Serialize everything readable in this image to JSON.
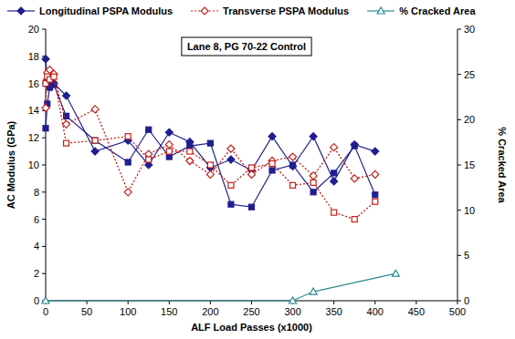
{
  "chart_data": {
    "type": "line",
    "annotation": "Lane 8, PG 70-22 Control",
    "x_label": "ALF Load Passes (x1000)",
    "y_label": "AC Modulus (GPa)",
    "y2_label": "% Cracked Area",
    "xlim": [
      0,
      500
    ],
    "xticks": [
      0,
      50,
      100,
      150,
      200,
      250,
      300,
      350,
      400,
      450,
      500
    ],
    "ylim": [
      0,
      20
    ],
    "yticks": [
      0,
      2,
      4,
      6,
      8,
      10,
      12,
      14,
      16,
      18,
      20
    ],
    "y2lim": [
      0,
      30
    ],
    "y2ticks": [
      0,
      5,
      10,
      15,
      20,
      25,
      30
    ],
    "grid": false,
    "legend": "top",
    "series": [
      {
        "name": "Longitudinal PSPA Modulus",
        "color": "#1f1f8f",
        "marker": "diamond",
        "line_style": "solid",
        "x": [
          0,
          2,
          5,
          10,
          25,
          60,
          100,
          125,
          150,
          175,
          200,
          225,
          250,
          275,
          300,
          325,
          350,
          375,
          400
        ],
        "values": [
          17.8,
          16.3,
          15.8,
          16.0,
          15.1,
          11.0,
          11.8,
          10.0,
          12.4,
          11.7,
          9.8,
          10.4,
          9.6,
          12.1,
          9.9,
          12.1,
          8.8,
          11.5,
          11.0
        ]
      },
      {
        "name": "Longitudinal PSPA Modulus",
        "color": "#1f1f8f",
        "marker": "square",
        "line_style": "solid",
        "x": [
          0,
          2,
          5,
          10,
          25,
          60,
          100,
          125,
          150,
          175,
          200,
          225,
          250,
          275,
          300,
          325,
          350,
          375,
          400
        ],
        "values": [
          12.7,
          14.5,
          15.7,
          15.9,
          13.6,
          11.8,
          10.2,
          12.6,
          10.6,
          11.4,
          11.6,
          7.1,
          6.9,
          9.6,
          10.0,
          8.0,
          9.4,
          11.4,
          7.8
        ]
      },
      {
        "name": "Transverse PSPA Modulus",
        "color": "#c0201a",
        "marker": "diamond-open",
        "line_style": "dotted",
        "x": [
          0,
          2,
          5,
          10,
          25,
          60,
          100,
          125,
          150,
          175,
          200,
          225,
          250,
          275,
          300,
          325,
          350,
          375,
          400
        ],
        "values": [
          14.2,
          16.8,
          17.0,
          16.7,
          13.0,
          14.1,
          8.0,
          10.8,
          11.5,
          10.3,
          9.3,
          11.2,
          9.3,
          10.3,
          10.6,
          9.2,
          11.3,
          9.0,
          9.3
        ]
      },
      {
        "name": "Transverse PSPA Modulus",
        "color": "#c0201a",
        "marker": "square-open",
        "line_style": "dotted",
        "x": [
          0,
          2,
          5,
          10,
          25,
          60,
          100,
          125,
          150,
          175,
          200,
          225,
          250,
          275,
          300,
          325,
          350,
          375,
          400
        ],
        "values": [
          16.0,
          16.5,
          16.3,
          16.5,
          11.6,
          11.8,
          12.1,
          10.4,
          11.0,
          11.0,
          10.0,
          8.5,
          9.8,
          10.1,
          8.5,
          8.7,
          6.5,
          6.0,
          7.3
        ]
      },
      {
        "name": "% Cracked Area",
        "color": "#2a8c8c",
        "marker": "triangle-open",
        "line_style": "solid",
        "axis": "y2",
        "x": [
          0,
          300,
          325,
          425
        ],
        "values": [
          0,
          0,
          1,
          3
        ]
      }
    ]
  }
}
